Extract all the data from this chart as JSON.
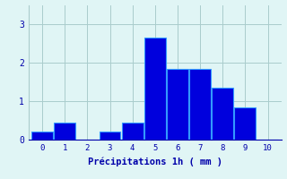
{
  "categories": [
    0,
    1,
    2,
    3,
    4,
    5,
    6,
    7,
    8,
    9,
    10
  ],
  "values": [
    0.2,
    0.45,
    0.0,
    0.2,
    0.45,
    2.65,
    1.85,
    1.85,
    1.35,
    0.85,
    0.0
  ],
  "bar_color": "#0000dd",
  "bar_edge_color": "#3399ff",
  "background_color": "#e0f5f5",
  "grid_color": "#aacccc",
  "xlabel": "Précipitations 1h ( mm )",
  "xlabel_color": "#0000aa",
  "tick_color": "#0000aa",
  "ylim": [
    0,
    3.5
  ],
  "yticks": [
    0,
    1,
    2,
    3
  ],
  "xlim": [
    -0.6,
    10.6
  ]
}
